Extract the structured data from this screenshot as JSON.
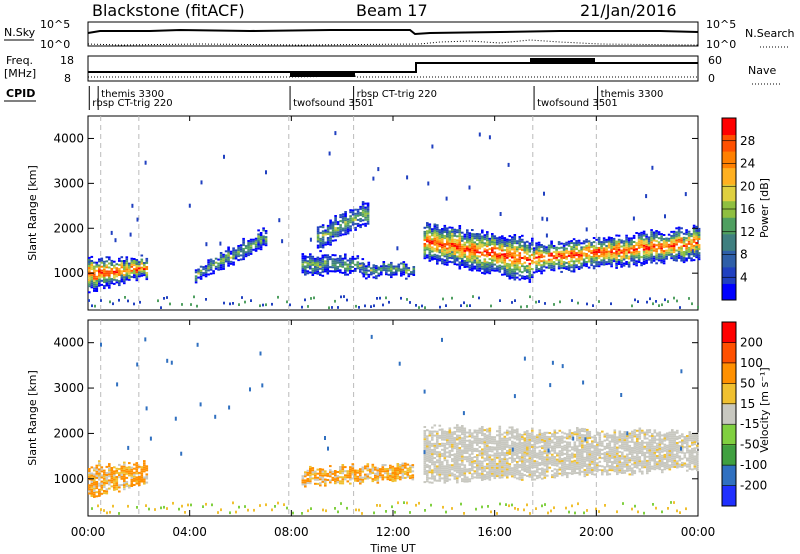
{
  "header": {
    "station": "Blackstone (fitACF)",
    "beam": "Beam 17",
    "date": "21/Jan/2016"
  },
  "strips": {
    "nsky_label": "N.Sky",
    "nsky_ticks": [
      "10^5",
      "10^0"
    ],
    "nsearch_label": "N.Search",
    "nsearch_ticks": [
      "10^5",
      "10^0"
    ],
    "freq_label": "Freq.",
    "freq_unit": "[MHz]",
    "freq_ticks": [
      "18",
      "8"
    ],
    "nave_label": "Nave",
    "nave_ticks": [
      "60",
      "0"
    ],
    "cpid_label": "CPID"
  },
  "cpid_segments": [
    {
      "name": "themis 3300",
      "start": 0.4,
      "row": 0
    },
    {
      "name": "rbsp CT-trig 220",
      "start": 0.05,
      "row": 1
    },
    {
      "name": "twofsound 3501",
      "start": 7.95,
      "row": 1
    },
    {
      "name": "rbsp CT-trig 220",
      "start": 10.45,
      "row": 0
    },
    {
      "name": "twofsound 3501",
      "start": 17.55,
      "row": 1
    },
    {
      "name": "themis 3300",
      "start": 20.05,
      "row": 0
    }
  ],
  "mode_boundaries": [
    0.5,
    2.0,
    7.9,
    10.45,
    17.5,
    20.0
  ],
  "chart_data": [
    {
      "type": "heatmap",
      "name": "Power",
      "xlabel": "",
      "ylabel": "Slant Range [km]",
      "xlim": [
        0,
        24
      ],
      "ylim": [
        180,
        4500
      ],
      "yticks": [
        1000,
        2000,
        3000,
        4000
      ],
      "colorbar": {
        "label": "Power [dB]",
        "ticks": [
          "28",
          "24",
          "20",
          "16",
          "12",
          "8",
          "4"
        ],
        "colors": [
          "#0000ff",
          "#2040c0",
          "#2f5fa8",
          "#3f7f80",
          "#4f9f60",
          "#8fbf40",
          "#dfd040",
          "#ffb020",
          "#ff8000",
          "#ff5000",
          "#ff0000"
        ]
      },
      "regions": [
        {
          "t": [
            0.0,
            2.3
          ],
          "lower": [
            600,
            900
          ],
          "upper": [
            1300,
            1300
          ],
          "core": "high"
        },
        {
          "t": [
            4.2,
            7.0
          ],
          "lower": [
            800,
            1600
          ],
          "upper": [
            1100,
            2000
          ],
          "core": "low"
        },
        {
          "t": [
            8.4,
            10.8
          ],
          "lower": [
            950,
            1000
          ],
          "upper": [
            1400,
            1300
          ],
          "core": "low"
        },
        {
          "t": [
            9.0,
            11.0
          ],
          "lower": [
            1500,
            2100
          ],
          "upper": [
            2000,
            2600
          ],
          "core": "low"
        },
        {
          "t": [
            10.8,
            12.8
          ],
          "lower": [
            900,
            900
          ],
          "upper": [
            1200,
            1200
          ],
          "core": "low"
        },
        {
          "t": [
            13.2,
            17.5
          ],
          "lower": [
            1300,
            800
          ],
          "upper": [
            2100,
            1700
          ],
          "core": "high"
        },
        {
          "t": [
            17.5,
            24.0
          ],
          "lower": [
            1000,
            1300
          ],
          "upper": [
            1600,
            2000
          ],
          "core": "high"
        }
      ]
    },
    {
      "type": "heatmap",
      "name": "Velocity",
      "xlabel": "Time UT",
      "ylabel": "Slant Range [km]",
      "xlim": [
        0,
        24
      ],
      "ylim": [
        180,
        4500
      ],
      "yticks": [
        1000,
        2000,
        3000,
        4000
      ],
      "xticks": [
        "00:00",
        "04:00",
        "08:00",
        "12:00",
        "16:00",
        "20:00",
        "00:00"
      ],
      "colorbar": {
        "label": "Velocity [m s⁻¹]",
        "ticks": [
          "200",
          "100",
          "50",
          "15",
          "-15",
          "-50",
          "-100",
          "-200"
        ],
        "colors": [
          "#2030ff",
          "#3070c0",
          "#40a040",
          "#80d040",
          "#c8c8c0",
          "#f0c030",
          "#ff9000",
          "#ff5000",
          "#ff0000"
        ]
      },
      "regions": [
        {
          "t": [
            0.0,
            2.3
          ],
          "lower": [
            600,
            900
          ],
          "upper": [
            1300,
            1300
          ],
          "color": "orange"
        },
        {
          "t": [
            8.4,
            12.8
          ],
          "lower": [
            850,
            1000
          ],
          "upper": [
            1200,
            1300
          ],
          "color": "orange"
        },
        {
          "t": [
            13.2,
            24.0
          ],
          "lower": [
            900,
            1200
          ],
          "upper": [
            2100,
            2000
          ],
          "color": "gray"
        }
      ]
    }
  ]
}
